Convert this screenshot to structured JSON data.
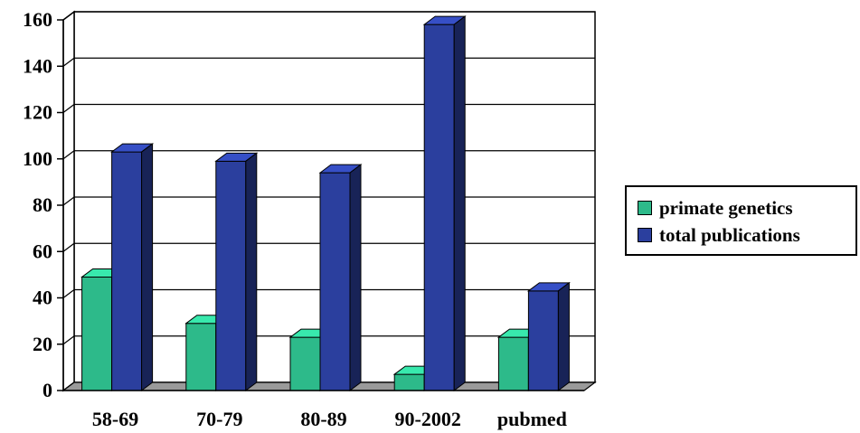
{
  "chart_data": {
    "type": "bar",
    "categories": [
      "58-69",
      "70-79",
      "80-89",
      "90-2002",
      "pubmed"
    ],
    "series": [
      {
        "name": "primate genetics",
        "values": [
          49,
          29,
          23,
          7,
          23
        ],
        "color": "#2dba8a"
      },
      {
        "name": "total publications",
        "values": [
          103,
          99,
          94,
          158,
          43
        ],
        "color": "#2b3f9e"
      }
    ],
    "ylim": [
      0,
      160
    ],
    "yticks": [
      "0",
      "20",
      "40",
      "60",
      "80",
      "100",
      "120",
      "140",
      "160"
    ],
    "legend_position": "right",
    "grid": true
  }
}
